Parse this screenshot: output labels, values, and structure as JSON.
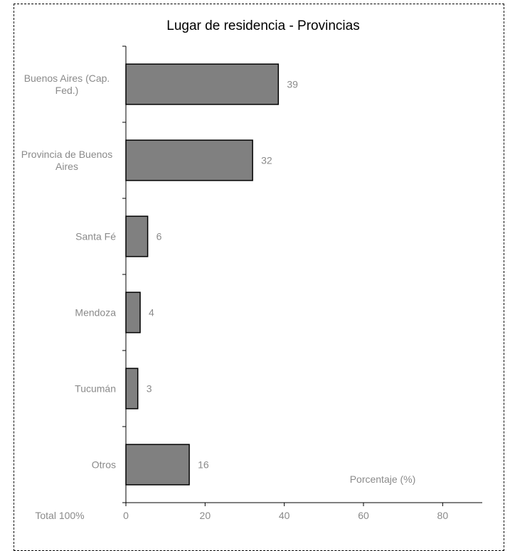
{
  "chart_data": {
    "type": "bar",
    "orientation": "horizontal",
    "title": "Lugar de residencia - Provincias",
    "xlabel": "Porcentaje (%)",
    "ylabel": "",
    "total_label": "Total 100%",
    "categories": [
      [
        "Buenos Aires (Cap.",
        "Fed.)"
      ],
      [
        "Provincia de Buenos",
        "Aires"
      ],
      [
        "Santa Fé"
      ],
      [
        "Mendoza"
      ],
      [
        "Tucumán"
      ],
      [
        "Otros"
      ]
    ],
    "values": [
      38.5,
      32,
      5.5,
      3.6,
      3,
      16
    ],
    "value_labels": [
      "39",
      "32",
      "6",
      "4",
      "3",
      "16"
    ],
    "xlim": [
      0,
      90
    ],
    "xticks": [
      0,
      20,
      40,
      60,
      80
    ],
    "grid": false,
    "bar_color": "#808080"
  }
}
